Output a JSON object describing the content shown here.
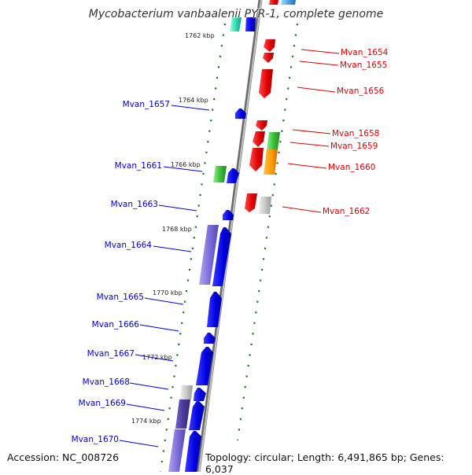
{
  "title": "Mycobacterium vanbaalenii PYR-1, complete genome",
  "accession": "Accession: NC_008726",
  "stats": "Topology: circular; Length: 6,491,865 bp; Genes: 6,037",
  "colors": {
    "forward": "#e00000",
    "reverse": "#0000dd",
    "backbone": "#808080",
    "ticks": "#1a7a1a"
  },
  "ticks": [
    "1762 kbp",
    "1764 kbp",
    "1766 kbp",
    "1768 kbp",
    "1770 kbp",
    "1772 kbp",
    "1774 kbp"
  ],
  "forward_labels": [
    "Mvan_1654",
    "Mvan_1655",
    "Mvan_1656",
    "Mvan_1658",
    "Mvan_1659",
    "Mvan_1660",
    "Mvan_1662"
  ],
  "reverse_labels": [
    "Mvan_1657",
    "Mvan_1661",
    "Mvan_1663",
    "Mvan_1664",
    "Mvan_1665",
    "Mvan_1666",
    "Mvan_1667",
    "Mvan_1668",
    "Mvan_1669",
    "Mvan_1670"
  ]
}
